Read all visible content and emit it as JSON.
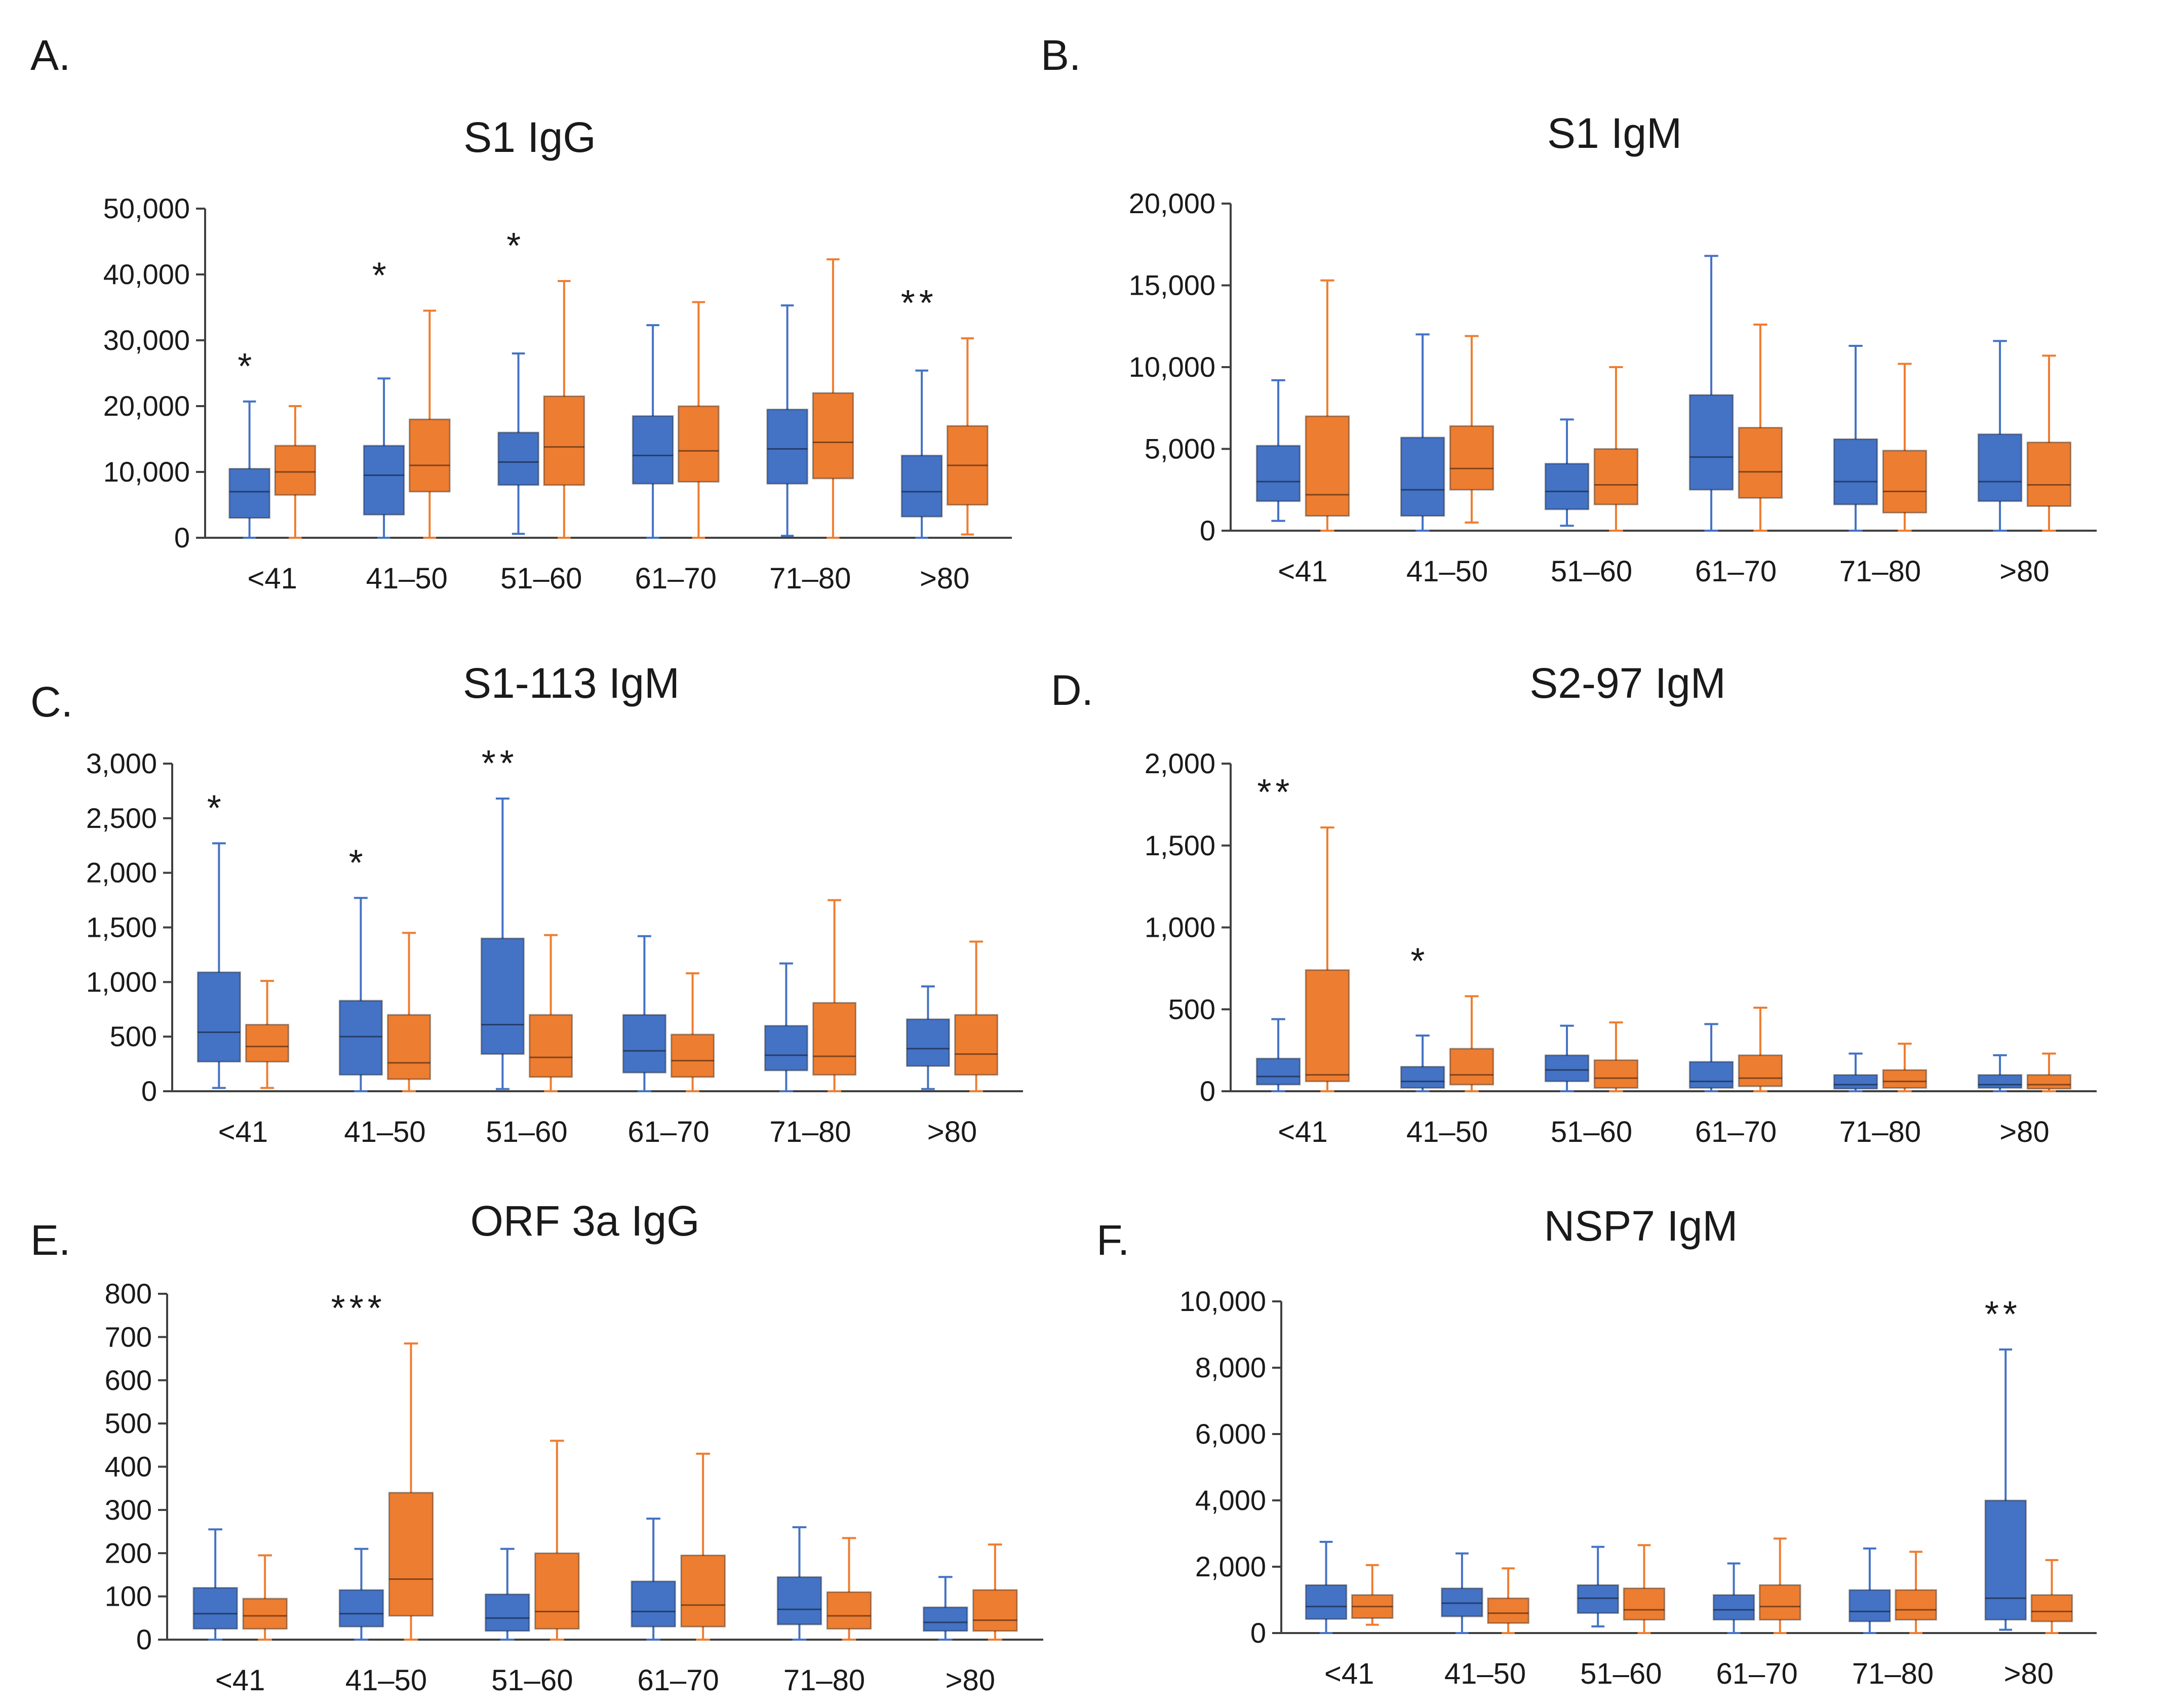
{
  "series_colors": {
    "series_1": "#4472C4",
    "series_2": "#ED7D31"
  },
  "chart_data": [
    {
      "panel": "A.",
      "type": "box",
      "title": "S1 IgG",
      "categories": [
        "<41",
        "41–50",
        "51–60",
        "61–70",
        "71–80",
        ">80"
      ],
      "ylim": [
        0,
        50000
      ],
      "yticks": [
        0,
        10000,
        20000,
        30000,
        40000,
        50000
      ],
      "ytick_labels": [
        "0",
        "10,000",
        "20,000",
        "30,000",
        "40,000",
        "50,000"
      ],
      "series": [
        {
          "name": "series_1",
          "color": "#4472C4",
          "boxes": [
            {
              "min": 0,
              "q1": 3000,
              "median": 7000,
              "q3": 10500,
              "max": 20700
            },
            {
              "min": 0,
              "q1": 3500,
              "median": 9500,
              "q3": 14000,
              "max": 24200
            },
            {
              "min": 600,
              "q1": 8000,
              "median": 11500,
              "q3": 16000,
              "max": 28000
            },
            {
              "min": 0,
              "q1": 8200,
              "median": 12500,
              "q3": 18500,
              "max": 32300
            },
            {
              "min": 300,
              "q1": 8200,
              "median": 13500,
              "q3": 19500,
              "max": 35300
            },
            {
              "min": 0,
              "q1": 3200,
              "median": 7000,
              "q3": 12500,
              "max": 25400
            }
          ]
        },
        {
          "name": "series_2",
          "color": "#ED7D31",
          "boxes": [
            {
              "min": 0,
              "q1": 6500,
              "median": 10000,
              "q3": 14000,
              "max": 20000
            },
            {
              "min": 0,
              "q1": 7000,
              "median": 11000,
              "q3": 18000,
              "max": 34500
            },
            {
              "min": 0,
              "q1": 8000,
              "median": 13800,
              "q3": 21500,
              "max": 39000
            },
            {
              "min": 0,
              "q1": 8500,
              "median": 13200,
              "q3": 20000,
              "max": 35800
            },
            {
              "min": 0,
              "q1": 9000,
              "median": 14500,
              "q3": 22000,
              "max": 42300
            },
            {
              "min": 500,
              "q1": 5000,
              "median": 11000,
              "q3": 17000,
              "max": 30300
            }
          ]
        }
      ],
      "annotations": [
        {
          "category": "<41",
          "text": "*"
        },
        {
          "category": "41–50",
          "text": "*"
        },
        {
          "category": "51–60",
          "text": "*"
        },
        {
          "category": ">80",
          "text": "**"
        }
      ]
    },
    {
      "panel": "B.",
      "type": "box",
      "title": "S1 IgM",
      "categories": [
        "<41",
        "41–50",
        "51–60",
        "61–70",
        "71–80",
        ">80"
      ],
      "ylim": [
        0,
        20000
      ],
      "yticks": [
        0,
        5000,
        10000,
        15000,
        20000
      ],
      "ytick_labels": [
        "0",
        "5,000",
        "10,000",
        "15,000",
        "20,000"
      ],
      "series": [
        {
          "name": "series_1",
          "color": "#4472C4",
          "boxes": [
            {
              "min": 600,
              "q1": 1800,
              "median": 3000,
              "q3": 5200,
              "max": 9200
            },
            {
              "min": 0,
              "q1": 900,
              "median": 2500,
              "q3": 5700,
              "max": 12000
            },
            {
              "min": 300,
              "q1": 1300,
              "median": 2400,
              "q3": 4100,
              "max": 6800
            },
            {
              "min": 0,
              "q1": 2500,
              "median": 4500,
              "q3": 8300,
              "max": 16800
            },
            {
              "min": 0,
              "q1": 1600,
              "median": 3000,
              "q3": 5600,
              "max": 11300
            },
            {
              "min": 0,
              "q1": 1800,
              "median": 3000,
              "q3": 5900,
              "max": 11600
            }
          ]
        },
        {
          "name": "series_2",
          "color": "#ED7D31",
          "boxes": [
            {
              "min": 0,
              "q1": 900,
              "median": 2200,
              "q3": 7000,
              "max": 15300
            },
            {
              "min": 500,
              "q1": 2500,
              "median": 3800,
              "q3": 6400,
              "max": 11900
            },
            {
              "min": 0,
              "q1": 1600,
              "median": 2800,
              "q3": 5000,
              "max": 10000
            },
            {
              "min": 0,
              "q1": 2000,
              "median": 3600,
              "q3": 6300,
              "max": 12600
            },
            {
              "min": 0,
              "q1": 1100,
              "median": 2400,
              "q3": 4900,
              "max": 10200
            },
            {
              "min": 0,
              "q1": 1500,
              "median": 2800,
              "q3": 5400,
              "max": 10700
            }
          ]
        }
      ],
      "annotations": []
    },
    {
      "panel": "C.",
      "type": "box",
      "title": "S1-113 IgM",
      "categories": [
        "<41",
        "41–50",
        "51–60",
        "61–70",
        "71–80",
        ">80"
      ],
      "ylim": [
        0,
        3000
      ],
      "yticks": [
        0,
        500,
        1000,
        1500,
        2000,
        2500,
        3000
      ],
      "ytick_labels": [
        "0",
        "500",
        "1,000",
        "1,500",
        "2,000",
        "2,500",
        "3,000"
      ],
      "series": [
        {
          "name": "series_1",
          "color": "#4472C4",
          "boxes": [
            {
              "min": 30,
              "q1": 270,
              "median": 540,
              "q3": 1090,
              "max": 2270
            },
            {
              "min": 0,
              "q1": 150,
              "median": 500,
              "q3": 830,
              "max": 1770
            },
            {
              "min": 20,
              "q1": 340,
              "median": 610,
              "q3": 1400,
              "max": 2680
            },
            {
              "min": 0,
              "q1": 170,
              "median": 370,
              "q3": 700,
              "max": 1420
            },
            {
              "min": 0,
              "q1": 190,
              "median": 330,
              "q3": 600,
              "max": 1170
            },
            {
              "min": 20,
              "q1": 230,
              "median": 390,
              "q3": 660,
              "max": 960
            }
          ]
        },
        {
          "name": "series_2",
          "color": "#ED7D31",
          "boxes": [
            {
              "min": 30,
              "q1": 270,
              "median": 410,
              "q3": 610,
              "max": 1010
            },
            {
              "min": 0,
              "q1": 110,
              "median": 260,
              "q3": 700,
              "max": 1450
            },
            {
              "min": 0,
              "q1": 130,
              "median": 310,
              "q3": 700,
              "max": 1430
            },
            {
              "min": 0,
              "q1": 130,
              "median": 280,
              "q3": 520,
              "max": 1080
            },
            {
              "min": 0,
              "q1": 150,
              "median": 320,
              "q3": 810,
              "max": 1750
            },
            {
              "min": 0,
              "q1": 150,
              "median": 340,
              "q3": 700,
              "max": 1370
            }
          ]
        }
      ],
      "annotations": [
        {
          "category": "<41",
          "text": "*"
        },
        {
          "category": "41–50",
          "text": "*"
        },
        {
          "category": "51–60",
          "text": "**"
        }
      ]
    },
    {
      "panel": "D.",
      "type": "box",
      "title": "S2-97 IgM",
      "categories": [
        "<41",
        "41–50",
        "51–60",
        "61–70",
        "71–80",
        ">80"
      ],
      "ylim": [
        0,
        2000
      ],
      "yticks": [
        0,
        500,
        1000,
        1500,
        2000
      ],
      "ytick_labels": [
        "0",
        "500",
        "1,000",
        "1,500",
        "2,000"
      ],
      "series": [
        {
          "name": "series_1",
          "color": "#4472C4",
          "boxes": [
            {
              "min": 0,
              "q1": 40,
              "median": 90,
              "q3": 200,
              "max": 440
            },
            {
              "min": 0,
              "q1": 20,
              "median": 60,
              "q3": 150,
              "max": 340
            },
            {
              "min": 0,
              "q1": 60,
              "median": 130,
              "q3": 220,
              "max": 400
            },
            {
              "min": 0,
              "q1": 20,
              "median": 60,
              "q3": 180,
              "max": 410
            },
            {
              "min": 0,
              "q1": 15,
              "median": 40,
              "q3": 100,
              "max": 230
            },
            {
              "min": 0,
              "q1": 20,
              "median": 40,
              "q3": 100,
              "max": 220
            }
          ]
        },
        {
          "name": "series_2",
          "color": "#ED7D31",
          "boxes": [
            {
              "min": 0,
              "q1": 60,
              "median": 100,
              "q3": 740,
              "max": 1610
            },
            {
              "min": 0,
              "q1": 40,
              "median": 100,
              "q3": 260,
              "max": 580
            },
            {
              "min": 0,
              "q1": 20,
              "median": 80,
              "q3": 190,
              "max": 420
            },
            {
              "min": 0,
              "q1": 30,
              "median": 80,
              "q3": 220,
              "max": 510
            },
            {
              "min": 0,
              "q1": 20,
              "median": 60,
              "q3": 130,
              "max": 290
            },
            {
              "min": 0,
              "q1": 15,
              "median": 40,
              "q3": 100,
              "max": 230
            }
          ]
        }
      ],
      "annotations": [
        {
          "category": "<41",
          "text": "**"
        },
        {
          "category": "41–50",
          "text": "*"
        }
      ]
    },
    {
      "panel": "E.",
      "type": "box",
      "title": "ORF 3a IgG",
      "categories": [
        "<41",
        "41–50",
        "51–60",
        "61–70",
        "71–80",
        ">80"
      ],
      "ylim": [
        0,
        800
      ],
      "yticks": [
        0,
        100,
        200,
        300,
        400,
        500,
        600,
        700,
        800
      ],
      "ytick_labels": [
        "0",
        "100",
        "200",
        "300",
        "400",
        "500",
        "600",
        "700",
        "800"
      ],
      "series": [
        {
          "name": "series_1",
          "color": "#4472C4",
          "boxes": [
            {
              "min": 0,
              "q1": 25,
              "median": 60,
              "q3": 120,
              "max": 255
            },
            {
              "min": 0,
              "q1": 30,
              "median": 60,
              "q3": 115,
              "max": 210
            },
            {
              "min": 0,
              "q1": 20,
              "median": 50,
              "q3": 105,
              "max": 210
            },
            {
              "min": 0,
              "q1": 30,
              "median": 65,
              "q3": 135,
              "max": 280
            },
            {
              "min": 0,
              "q1": 35,
              "median": 70,
              "q3": 145,
              "max": 260
            },
            {
              "min": 0,
              "q1": 20,
              "median": 40,
              "q3": 75,
              "max": 145
            }
          ]
        },
        {
          "name": "series_2",
          "color": "#ED7D31",
          "boxes": [
            {
              "min": 0,
              "q1": 25,
              "median": 55,
              "q3": 95,
              "max": 195
            },
            {
              "min": 0,
              "q1": 55,
              "median": 140,
              "q3": 340,
              "max": 685
            },
            {
              "min": 0,
              "q1": 25,
              "median": 65,
              "q3": 200,
              "max": 460
            },
            {
              "min": 0,
              "q1": 30,
              "median": 80,
              "q3": 195,
              "max": 430
            },
            {
              "min": 0,
              "q1": 25,
              "median": 55,
              "q3": 110,
              "max": 235
            },
            {
              "min": 0,
              "q1": 20,
              "median": 45,
              "q3": 115,
              "max": 220
            }
          ]
        }
      ],
      "annotations": [
        {
          "category": "41–50",
          "text": "***"
        }
      ]
    },
    {
      "panel": "F.",
      "type": "box",
      "title": "NSP7 IgM",
      "categories": [
        "<41",
        "41–50",
        "51–60",
        "61–70",
        "71–80",
        ">80"
      ],
      "ylim": [
        0,
        10000
      ],
      "yticks": [
        0,
        2000,
        4000,
        6000,
        8000,
        10000
      ],
      "ytick_labels": [
        "0",
        "2,000",
        "4,000",
        "6,000",
        "8,000",
        "10,000"
      ],
      "series": [
        {
          "name": "series_1",
          "color": "#4472C4",
          "boxes": [
            {
              "min": 0,
              "q1": 420,
              "median": 800,
              "q3": 1450,
              "max": 2750
            },
            {
              "min": 0,
              "q1": 500,
              "median": 900,
              "q3": 1350,
              "max": 2400
            },
            {
              "min": 200,
              "q1": 600,
              "median": 1050,
              "q3": 1450,
              "max": 2600
            },
            {
              "min": 0,
              "q1": 400,
              "median": 700,
              "q3": 1150,
              "max": 2100
            },
            {
              "min": 0,
              "q1": 350,
              "median": 650,
              "q3": 1300,
              "max": 2550
            },
            {
              "min": 100,
              "q1": 400,
              "median": 1050,
              "q3": 4000,
              "max": 8550
            }
          ]
        },
        {
          "name": "series_2",
          "color": "#ED7D31",
          "boxes": [
            {
              "min": 250,
              "q1": 450,
              "median": 800,
              "q3": 1150,
              "max": 2050
            },
            {
              "min": 0,
              "q1": 300,
              "median": 600,
              "q3": 1050,
              "max": 1950
            },
            {
              "min": 0,
              "q1": 400,
              "median": 700,
              "q3": 1350,
              "max": 2650
            },
            {
              "min": 0,
              "q1": 400,
              "median": 800,
              "q3": 1450,
              "max": 2850
            },
            {
              "min": 0,
              "q1": 400,
              "median": 700,
              "q3": 1300,
              "max": 2450
            },
            {
              "min": 0,
              "q1": 350,
              "median": 650,
              "q3": 1150,
              "max": 2200
            }
          ]
        }
      ],
      "annotations": [
        {
          "category": ">80",
          "text": "**"
        }
      ]
    }
  ]
}
